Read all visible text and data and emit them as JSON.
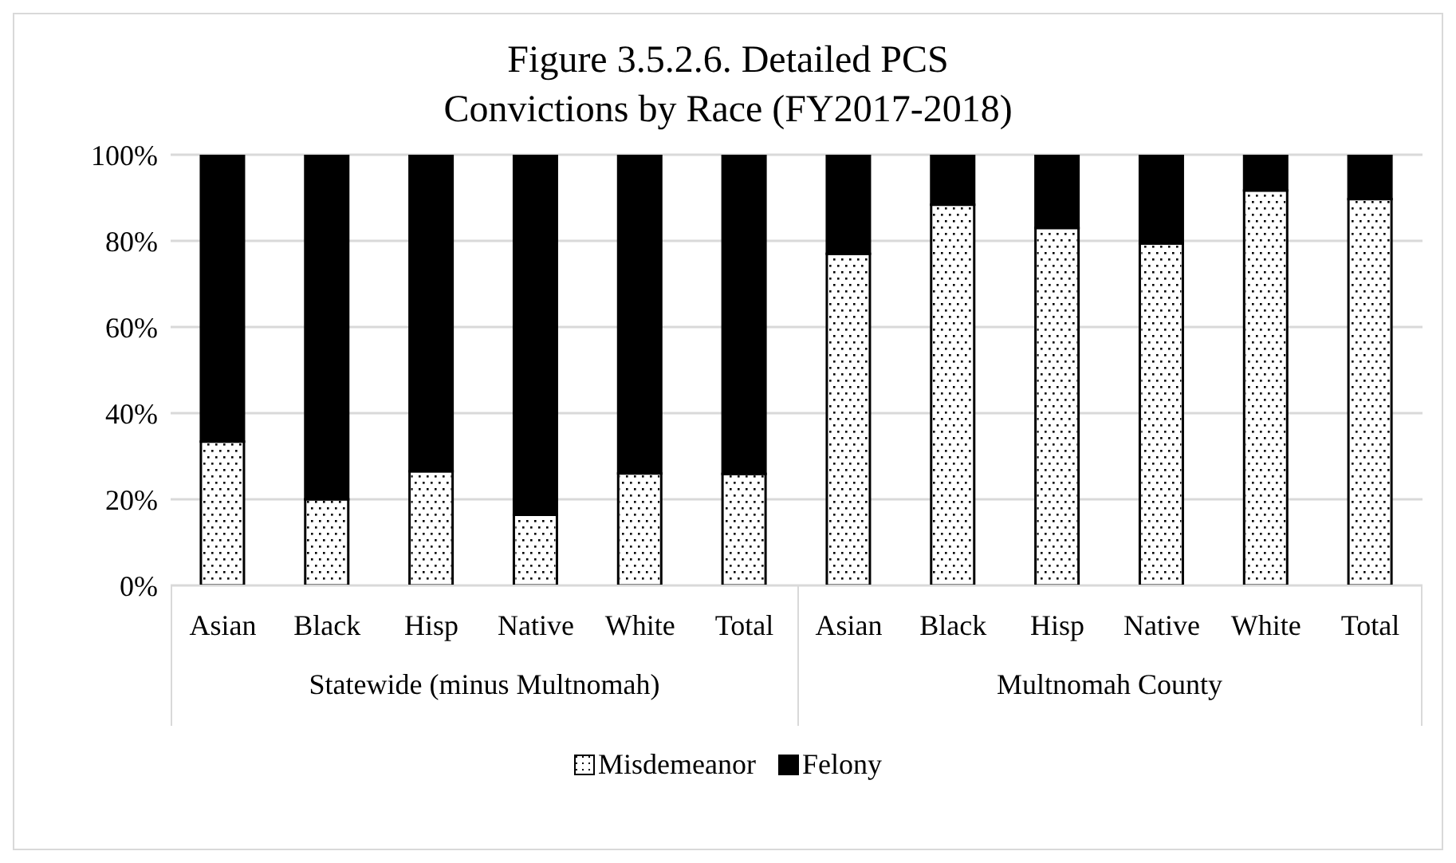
{
  "chart_data": {
    "type": "bar",
    "title": "Figure 3.5.2.6. Detailed PCS\nConvictions by Race (FY2017-2018)",
    "categories": [
      "Asian",
      "Black",
      "Hisp",
      "Native",
      "White",
      "Total",
      "Asian",
      "Black",
      "Hisp",
      "Native",
      "White",
      "Total"
    ],
    "annotations": [
      "Statewide (minus Multnomah)",
      "Multnomah County"
    ],
    "series": [
      {
        "name": "Misdemeanor",
        "color": "#ffffff",
        "values": [
          33.4,
          20,
          26.5,
          16.4,
          26,
          25.9,
          77,
          88.4,
          83,
          79.4,
          91.7,
          89.7
        ]
      },
      {
        "name": "Felony",
        "color": "#000000",
        "values": [
          66.6,
          80,
          73.5,
          83.6,
          74,
          74.1,
          23,
          11.6,
          17,
          20.6,
          8.3,
          10.3
        ]
      }
    ],
    "stacked": true,
    "ylim": [
      0,
      100
    ],
    "yticks": [
      {
        "value": 0,
        "label": "0%"
      },
      {
        "value": 20,
        "label": "20%"
      },
      {
        "value": 40,
        "label": "40%"
      },
      {
        "value": 60,
        "label": "60%"
      },
      {
        "value": 80,
        "label": "80%"
      },
      {
        "value": 100,
        "label": "100%"
      }
    ],
    "grid": "y",
    "legend": "bottom"
  }
}
